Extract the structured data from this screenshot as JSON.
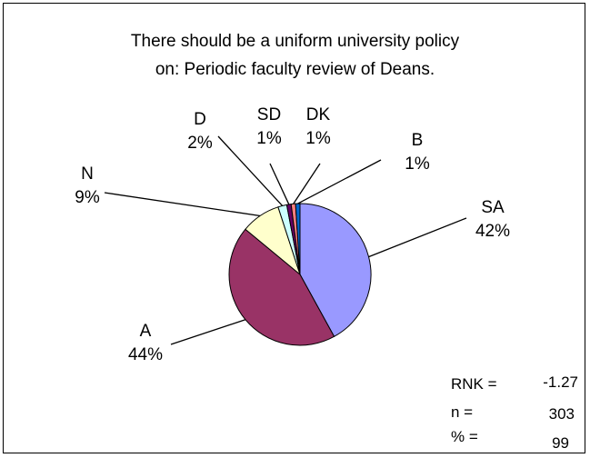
{
  "title_line1": "There should be a uniform university policy",
  "title_line2": "on: Periodic faculty review of Deans.",
  "chart_data": {
    "type": "pie",
    "title": "There should be a uniform university policy on: Periodic faculty review of Deans.",
    "slices": [
      {
        "label": "SA",
        "pct_label": "42%",
        "value": 42,
        "color": "#9999ff"
      },
      {
        "label": "A",
        "pct_label": "44%",
        "value": 44,
        "color": "#993366"
      },
      {
        "label": "N",
        "pct_label": "9%",
        "value": 9,
        "color": "#ffffcc"
      },
      {
        "label": "D",
        "pct_label": "2%",
        "value": 2,
        "color": "#ccffff"
      },
      {
        "label": "SD",
        "pct_label": "1%",
        "value": 1,
        "color": "#660066"
      },
      {
        "label": "DK",
        "pct_label": "1%",
        "value": 1,
        "color": "#ff8080"
      },
      {
        "label": "B",
        "pct_label": "1%",
        "value": 1,
        "color": "#0066cc"
      }
    ]
  },
  "stats": {
    "rnk_label": "RNK =",
    "rnk_value": "-1.27",
    "n_label": "n =",
    "n_value": "303",
    "pct_label": "% =",
    "pct_value": "99"
  }
}
